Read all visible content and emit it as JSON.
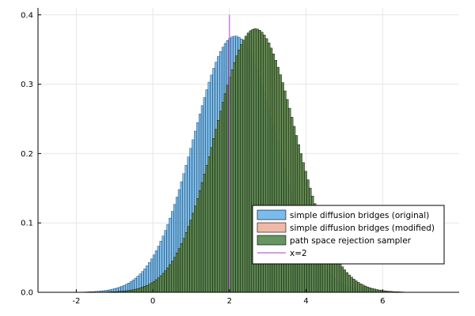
{
  "chart_data": {
    "type": "histogram",
    "title": "",
    "xlabel": "",
    "ylabel": "",
    "xlim": [
      -3,
      8
    ],
    "ylim": [
      0,
      0.41
    ],
    "x_ticks": [
      -2,
      0,
      2,
      4,
      6
    ],
    "x_tick_labels": [
      "-2",
      "0",
      "2",
      "4",
      "6"
    ],
    "y_ticks": [
      0.0,
      0.1,
      0.2,
      0.3,
      0.4
    ],
    "y_tick_labels": [
      "0.0",
      "0.1",
      "0.2",
      "0.3",
      "0.4"
    ],
    "grid": true,
    "legend_position": "bottom-right",
    "bin_width": 0.06,
    "bin_range": [
      -2.4,
      7.2
    ],
    "series": [
      {
        "name": "simple diffusion bridges (original)",
        "color": "#4EA5E8",
        "distribution": {
          "family": "normal",
          "mean": 2.15,
          "sd": 1.08
        }
      },
      {
        "name": "simple diffusion bridges (modified)",
        "color": "#E8A38A",
        "distribution": {
          "family": "normal",
          "mean": 2.68,
          "sd": 1.05
        }
      },
      {
        "name": "path space rejection sampler",
        "color": "#3E7A3A",
        "distribution": {
          "family": "normal",
          "mean": 2.68,
          "sd": 1.05
        }
      }
    ],
    "vline": {
      "name": "x=2",
      "x": 2,
      "y_range": [
        0,
        0.4
      ],
      "color": "#C060D8"
    }
  }
}
